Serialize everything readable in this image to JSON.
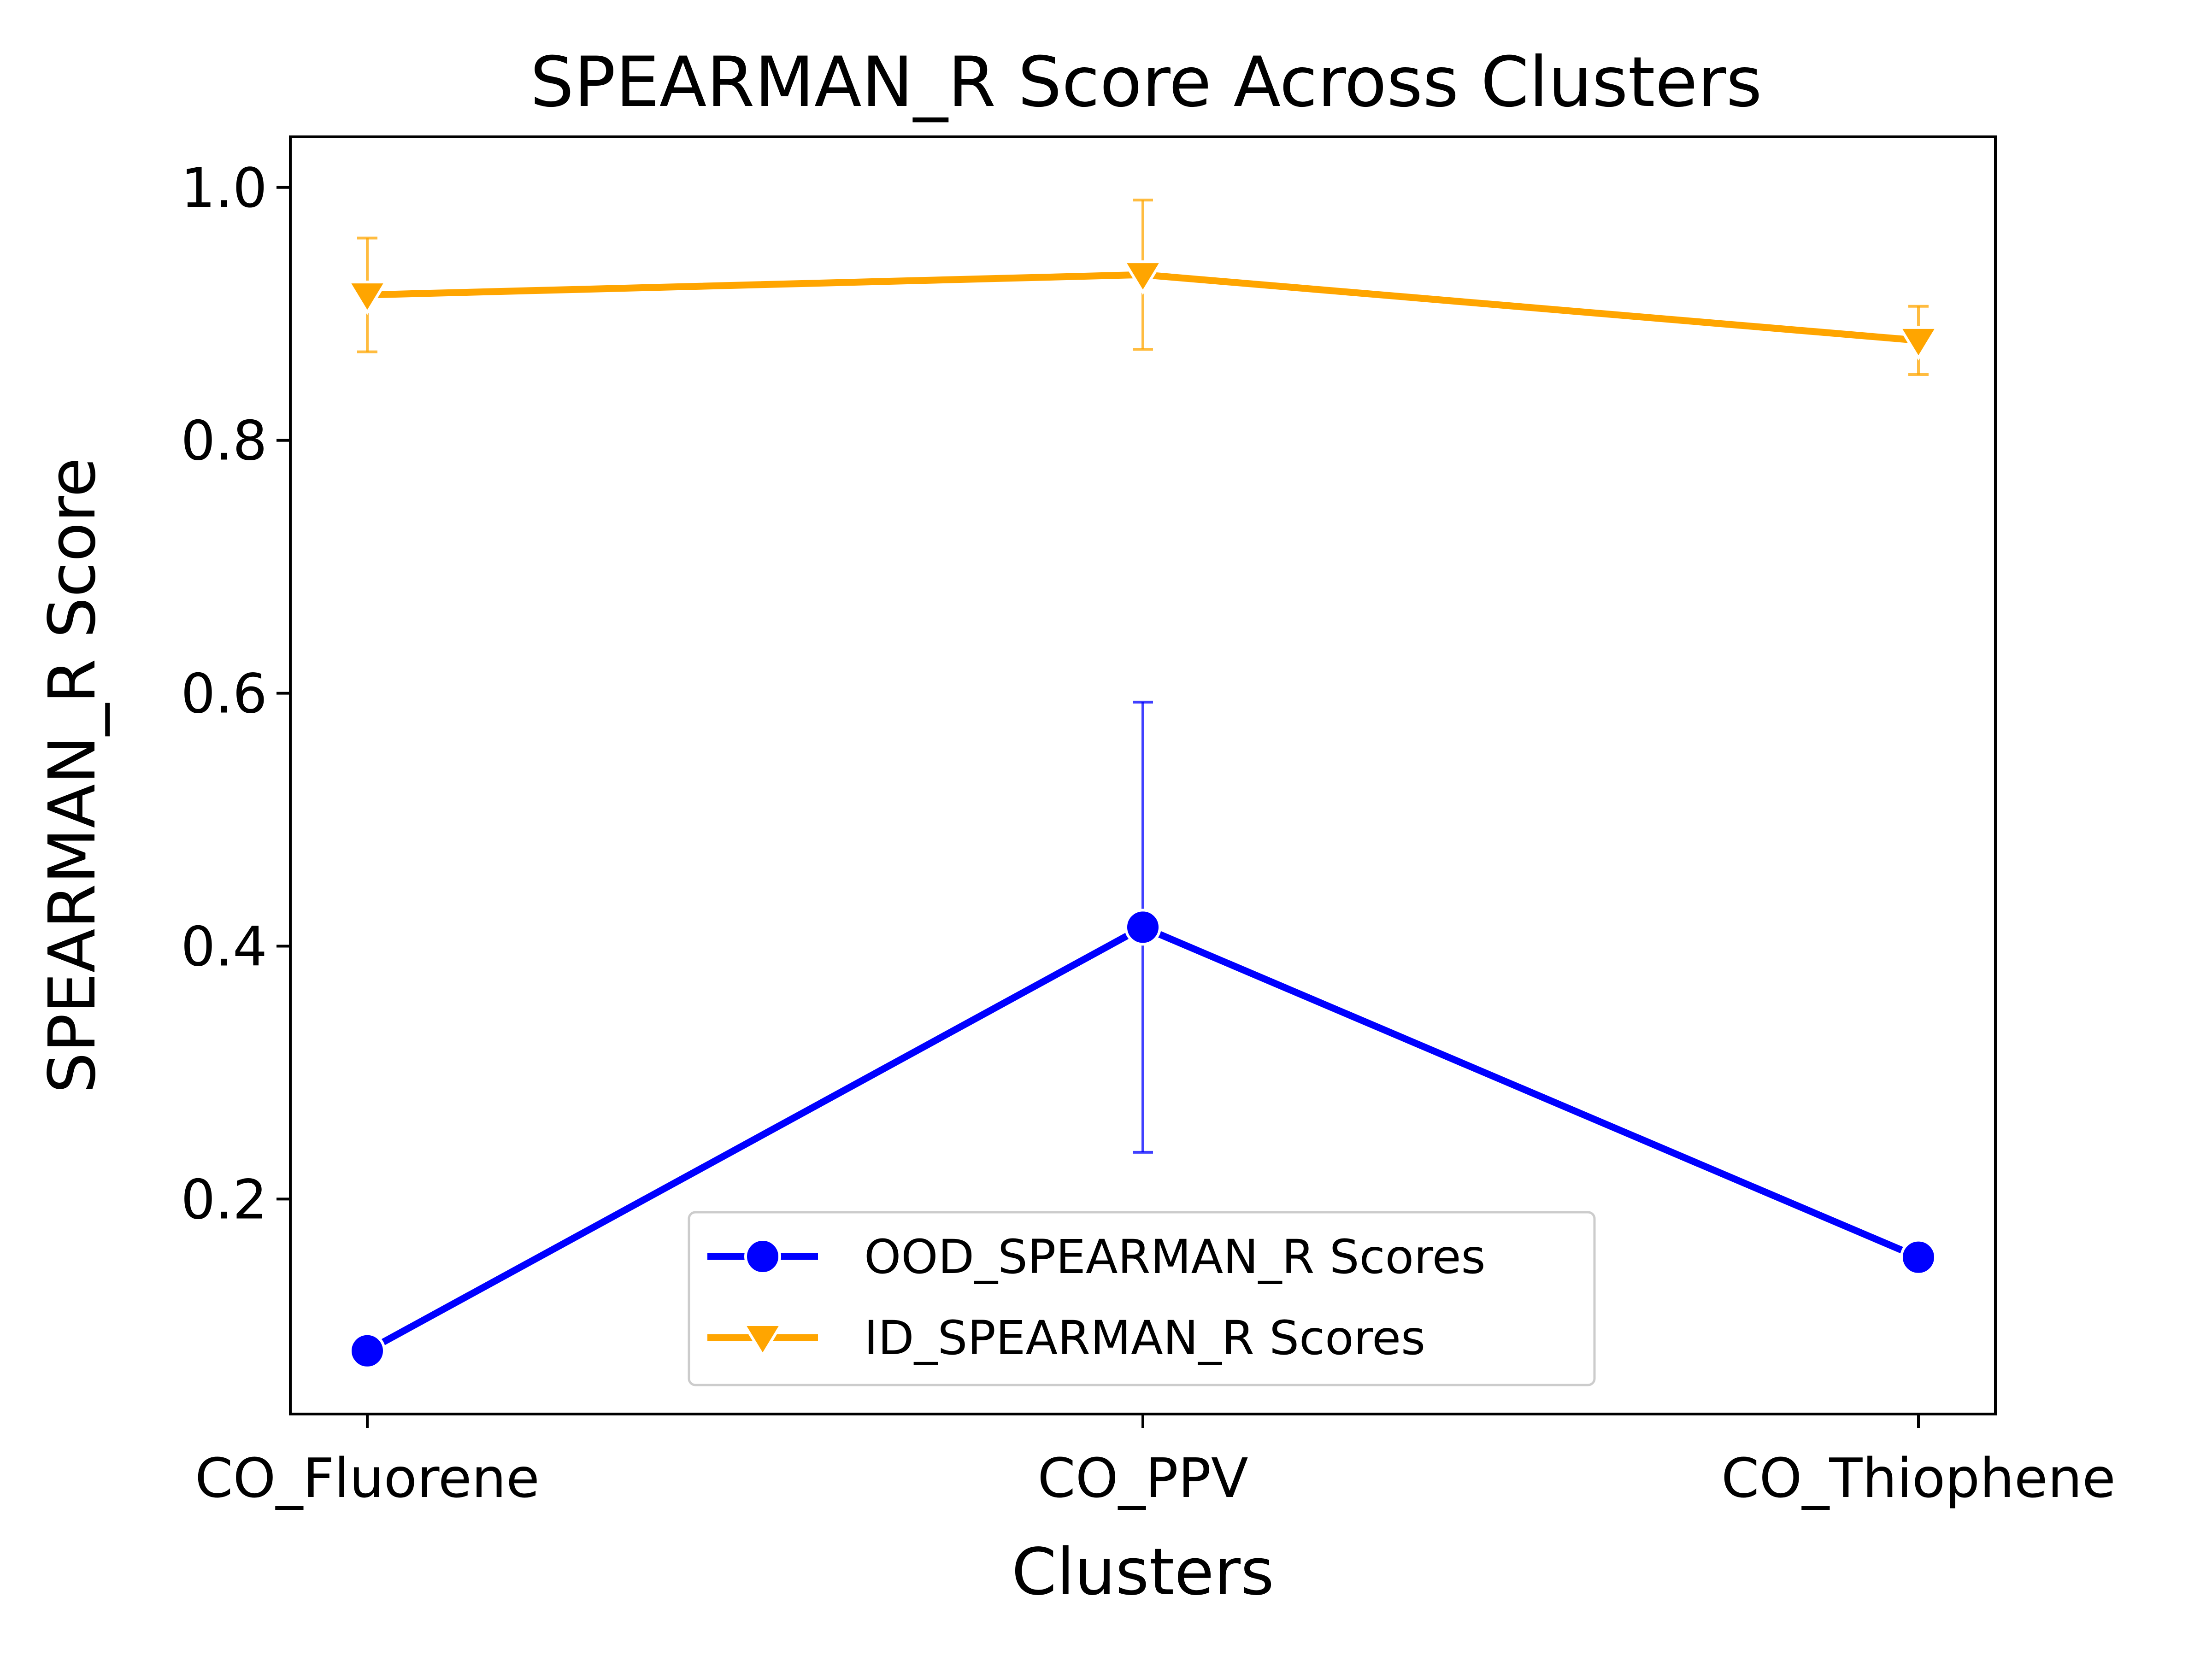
{
  "chart_data": {
    "type": "line",
    "title": "SPEARMAN_R Score Across Clusters",
    "xlabel": "Clusters",
    "ylabel": "SPEARMAN_R Score",
    "categories": [
      "CO_Fluorene",
      "CO_PPV",
      "CO_Thiophene"
    ],
    "ylim": [
      0.03,
      1.04
    ],
    "yticks": [
      0.2,
      0.4,
      0.6,
      0.8,
      1.0
    ],
    "ytick_labels": [
      "0.2",
      "0.4",
      "0.6",
      "0.8",
      "1.0"
    ],
    "grid": false,
    "legend_position": "lower-center",
    "series": [
      {
        "name": "OOD_SPEARMAN_R Scores",
        "color": "#0000ff",
        "marker": "circle",
        "values": [
          0.08,
          0.415,
          0.154
        ],
        "error": [
          null,
          0.178,
          null
        ]
      },
      {
        "name": "ID_SPEARMAN_R Scores",
        "color": "#ffa500",
        "marker": "triangle-down",
        "values": [
          0.915,
          0.931,
          0.879
        ],
        "error": [
          0.045,
          0.059,
          0.027
        ]
      }
    ]
  }
}
